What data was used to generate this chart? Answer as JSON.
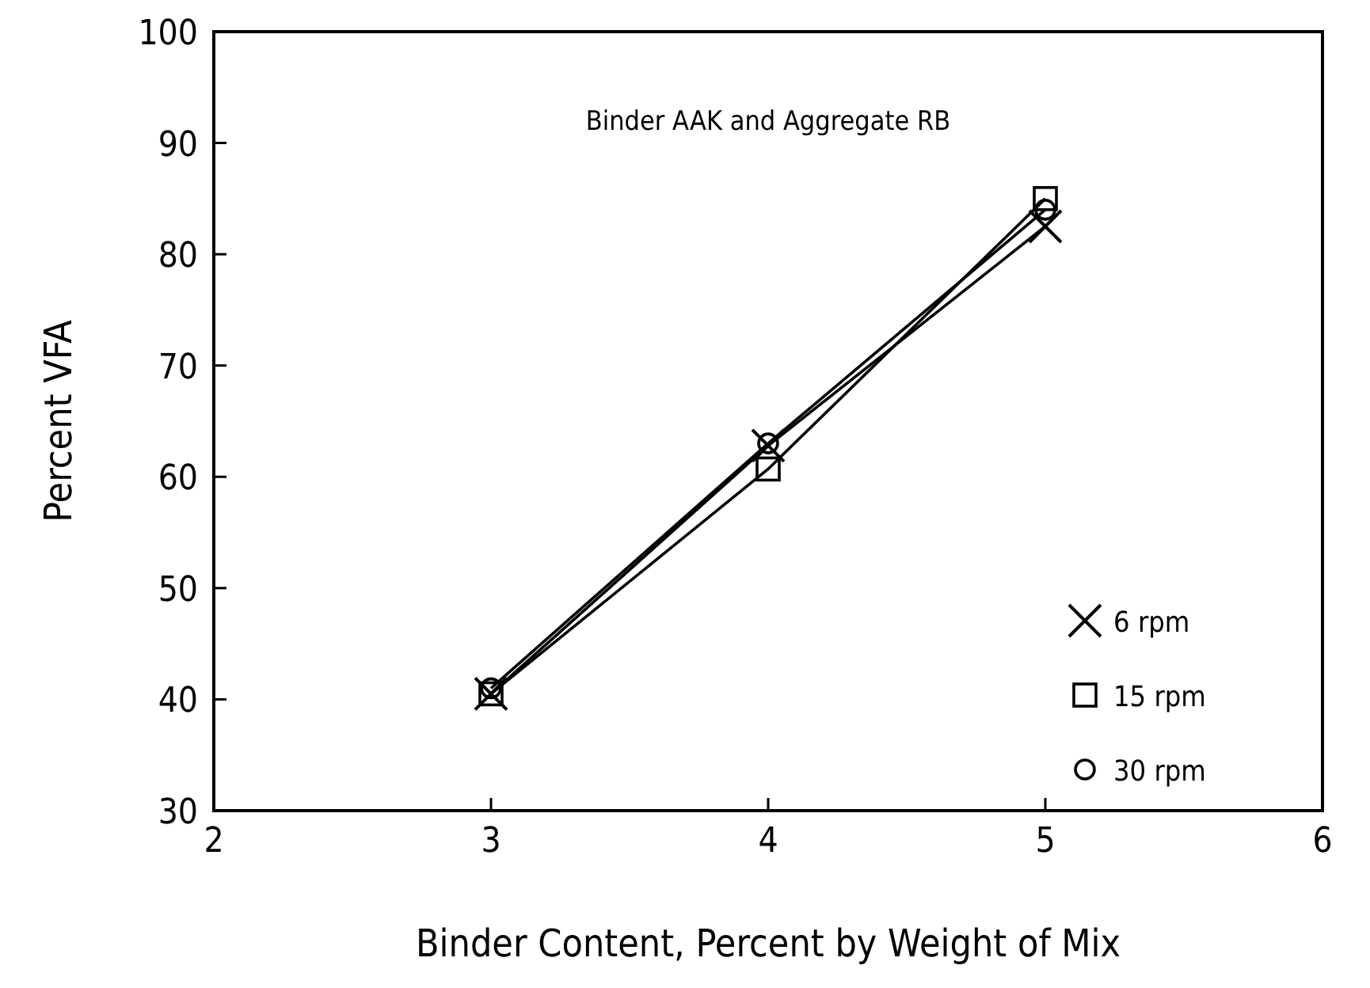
{
  "chart_data": {
    "type": "line",
    "title": "Binder AAK and Aggregate RB",
    "xlabel": "Binder Content, Percent by Weight of Mix",
    "ylabel": "Percent VFA",
    "x": [
      3,
      4,
      5
    ],
    "series": [
      {
        "name": "6 rpm",
        "color": "#000000",
        "marker": "cross",
        "values": [
          40.5,
          62.8,
          82.5
        ]
      },
      {
        "name": "15 rpm",
        "color": "#000000",
        "marker": "square",
        "values": [
          40.5,
          60.7,
          85
        ]
      },
      {
        "name": "30 rpm",
        "color": "#000000",
        "marker": "circle",
        "values": [
          41,
          63,
          84
        ]
      }
    ],
    "xlim": [
      2,
      6
    ],
    "xticks": [
      2,
      3,
      4,
      5,
      6
    ],
    "ylim": [
      30,
      100
    ],
    "yticks": [
      30,
      40,
      50,
      60,
      70,
      80,
      90,
      100
    ],
    "grid": false,
    "legend": "bottom right",
    "line_style": "solid"
  }
}
